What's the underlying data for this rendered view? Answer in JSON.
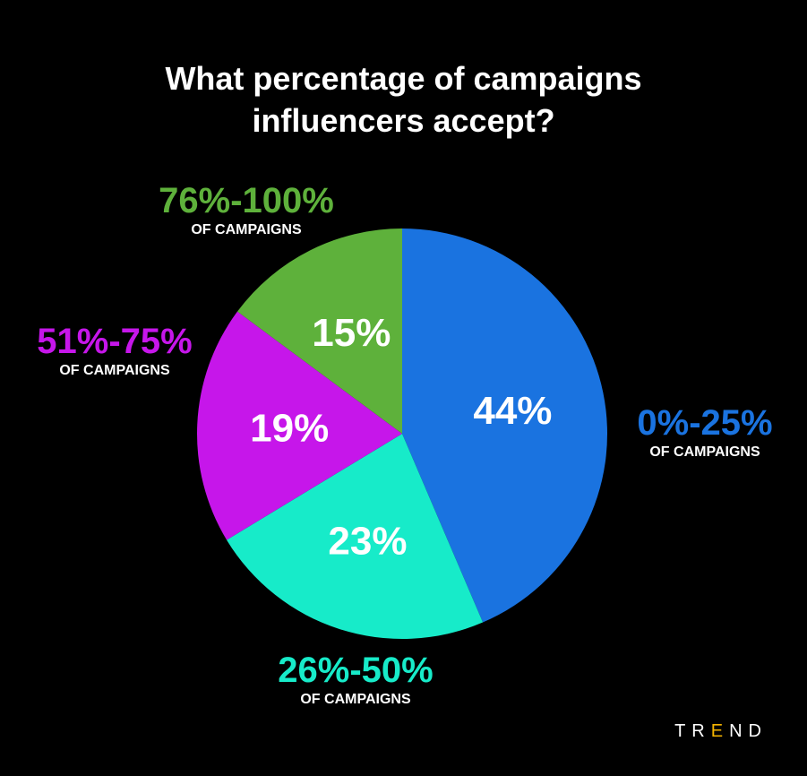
{
  "chart_data": {
    "type": "pie",
    "title_lines": [
      "What percentage of campaigns",
      "influencers accept?"
    ],
    "slices": [
      {
        "label": "0%-25%",
        "sublabel": "OF CAMPAIGNS",
        "value": 44,
        "value_label": "44%",
        "color": "#1a73e0"
      },
      {
        "label": "26%-50%",
        "sublabel": "OF CAMPAIGNS",
        "value": 23,
        "value_label": "23%",
        "color": "#17ebc9"
      },
      {
        "label": "51%-75%",
        "sublabel": "OF CAMPAIGNS",
        "value": 19,
        "value_label": "19%",
        "color": "#c616ea"
      },
      {
        "label": "76%-100%",
        "sublabel": "OF CAMPAIGNS",
        "value": 15,
        "value_label": "15%",
        "color": "#5eb13b"
      }
    ]
  },
  "brand": {
    "logo_text": "TREND",
    "accent_color": "#f5b400"
  }
}
